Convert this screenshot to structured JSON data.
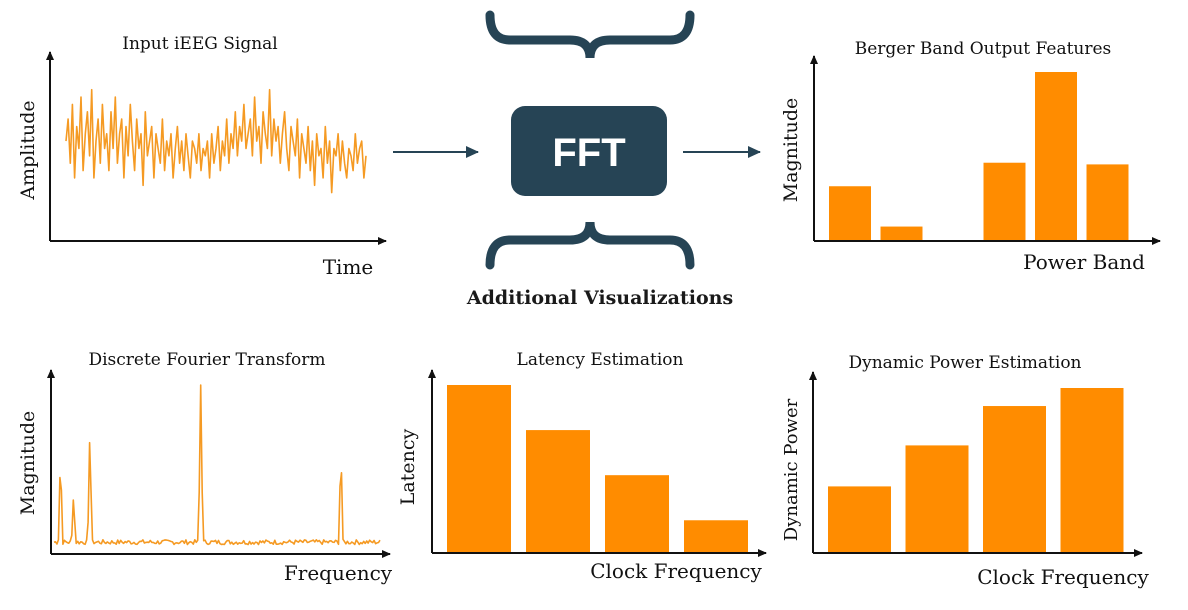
{
  "center": {
    "fft_label": "FFT",
    "caption": "Additional Visualizations"
  },
  "colors": {
    "accent": "#ff8c00",
    "signal": "#f59a23",
    "dark": "#264455",
    "arrow": "#264455",
    "axis": "#111111"
  },
  "panels": {
    "input": {
      "title": "Input iEEG Signal",
      "ylabel": "Amplitude",
      "xlabel": "Time"
    },
    "berger": {
      "title": "Berger Band Output Features",
      "ylabel": "Magnitude",
      "xlabel": "Power Band"
    },
    "dft": {
      "title": "Discrete Fourier Transform",
      "ylabel": "Magnitude",
      "xlabel": "Frequency"
    },
    "latency": {
      "title": "Latency Estimation",
      "ylabel": "Latency",
      "xlabel": "Clock Frequency"
    },
    "power": {
      "title": "Dynamic Power Estimation",
      "ylabel": "Dynamic Power",
      "xlabel": "Clock Frequency"
    }
  },
  "chart_data": [
    {
      "type": "line",
      "id": "input",
      "title": "Input iEEG Signal",
      "xlabel": "Time",
      "ylabel": "Amplitude",
      "y": [
        0.55,
        0.7,
        0.4,
        0.8,
        0.3,
        0.65,
        0.5,
        0.85,
        0.35,
        0.6,
        0.75,
        0.45,
        0.9,
        0.3,
        0.55,
        0.7,
        0.4,
        0.8,
        0.5,
        0.6,
        0.35,
        0.75,
        0.5,
        0.85,
        0.4,
        0.6,
        0.7,
        0.3,
        0.65,
        0.45,
        0.8,
        0.55,
        0.35,
        0.7,
        0.5,
        0.6,
        0.25,
        0.75,
        0.45,
        0.55,
        0.65,
        0.3,
        0.6,
        0.5,
        0.4,
        0.7,
        0.35,
        0.55,
        0.45,
        0.6,
        0.3,
        0.5,
        0.65,
        0.4,
        0.55,
        0.35,
        0.6,
        0.45,
        0.3,
        0.55,
        0.5,
        0.4,
        0.6,
        0.35,
        0.5,
        0.45,
        0.55,
        0.3,
        0.6,
        0.4,
        0.5,
        0.65,
        0.35,
        0.55,
        0.45,
        0.7,
        0.4,
        0.6,
        0.5,
        0.75,
        0.45,
        0.65,
        0.55,
        0.8,
        0.5,
        0.6,
        0.7,
        0.45,
        0.85,
        0.55,
        0.65,
        0.4,
        0.75,
        0.6,
        0.5,
        0.9,
        0.45,
        0.7,
        0.55,
        0.65,
        0.4,
        0.6,
        0.75,
        0.5,
        0.35,
        0.65,
        0.55,
        0.45,
        0.7,
        0.3,
        0.6,
        0.5,
        0.4,
        0.65,
        0.35,
        0.55,
        0.25,
        0.6,
        0.45,
        0.5,
        0.3,
        0.65,
        0.4,
        0.55,
        0.2,
        0.5,
        0.45,
        0.6,
        0.35,
        0.55,
        0.4,
        0.3,
        0.5,
        0.45,
        0.35,
        0.6,
        0.4,
        0.5,
        0.55,
        0.3,
        0.45
      ]
    },
    {
      "type": "bar",
      "id": "berger",
      "title": "Berger Band Output Features",
      "xlabel": "Power Band",
      "ylabel": "Magnitude",
      "values": [
        0.32,
        0.08,
        0,
        0.46,
        1.0,
        0.45
      ]
    },
    {
      "type": "line",
      "id": "dft",
      "title": "Discrete Fourier Transform",
      "xlabel": "Frequency",
      "ylabel": "Magnitude",
      "peaks": [
        {
          "x": 0.02,
          "y": 0.58
        },
        {
          "x": 0.06,
          "y": 0.33
        },
        {
          "x": 0.11,
          "y": 0.74
        },
        {
          "x": 0.45,
          "y": 1.0
        },
        {
          "x": 0.88,
          "y": 0.62
        }
      ],
      "noise": 0.03
    },
    {
      "type": "bar",
      "id": "latency",
      "title": "Latency Estimation",
      "xlabel": "Clock Frequency",
      "ylabel": "Latency",
      "values": [
        1.0,
        0.73,
        0.46,
        0.19
      ]
    },
    {
      "type": "bar",
      "id": "power",
      "title": "Dynamic Power Estimation",
      "xlabel": "Clock Frequency",
      "ylabel": "Dynamic Power",
      "values": [
        0.4,
        0.65,
        0.89,
        1.0
      ]
    }
  ]
}
